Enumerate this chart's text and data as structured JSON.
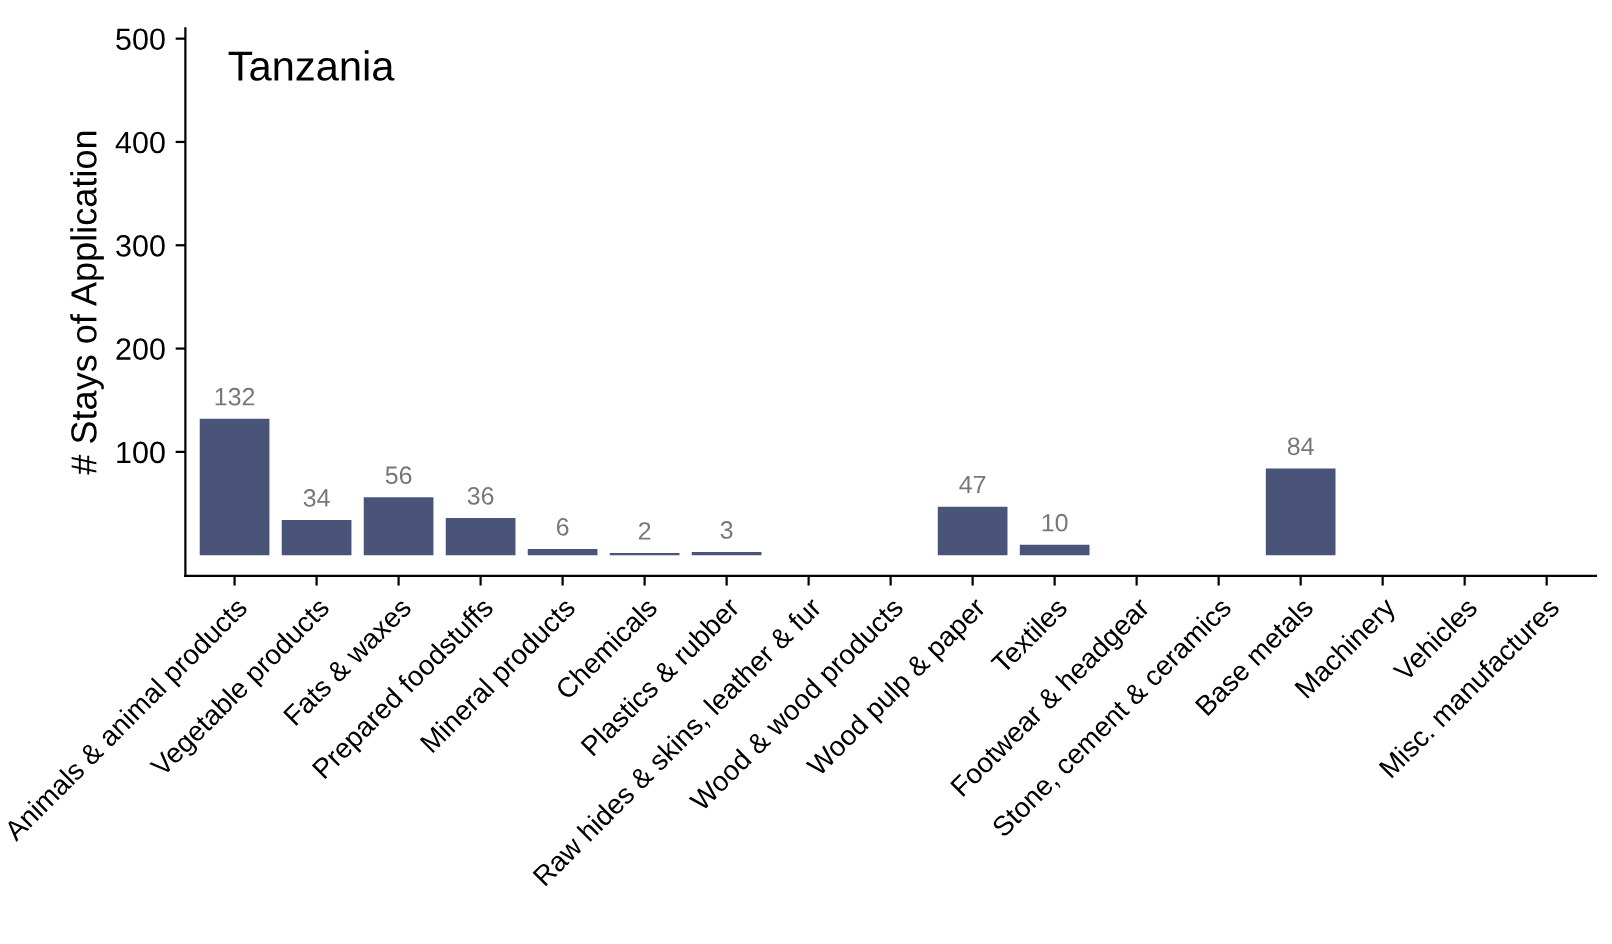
{
  "chart_data": {
    "type": "bar",
    "title": "Tanzania",
    "ylabel": "# Stays of Application",
    "categories": [
      "Animals & animal products",
      "Vegetable products",
      "Fats & waxes",
      "Prepared foodstuffs",
      "Mineral products",
      "Chemicals",
      "Plastics & rubber",
      "Raw hides & skins, leather & fur",
      "Wood & wood products",
      "Wood pulp & paper",
      "Textiles",
      "Footwear & headgear",
      "Stone, cement & ceramics",
      "Base metals",
      "Machinery",
      "Vehicles",
      "Misc. manufactures"
    ],
    "values": [
      132,
      34,
      56,
      36,
      6,
      2,
      3,
      0,
      0,
      47,
      10,
      0,
      0,
      84,
      0,
      0,
      0
    ],
    "value_labels": [
      "132",
      "34",
      "56",
      "36",
      "6",
      "2",
      "3",
      null,
      null,
      "47",
      "10",
      null,
      null,
      "84",
      null,
      null,
      null
    ],
    "color": "#4a5478",
    "ylim": [
      -20,
      510
    ],
    "yticks": [
      100,
      200,
      300,
      400,
      500
    ],
    "grid": false
  }
}
